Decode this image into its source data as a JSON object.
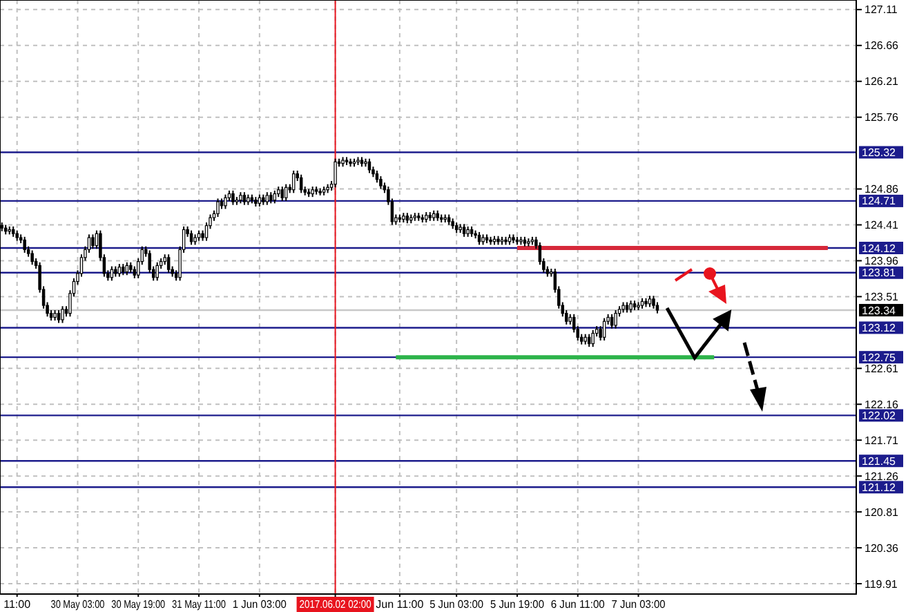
{
  "chart_data": {
    "type": "candlestick",
    "categories": [
      null,
      null,
      null,
      null,
      "11:00",
      null,
      null,
      null,
      null,
      null,
      null,
      null,
      null,
      null,
      null,
      null,
      null,
      null,
      null,
      null,
      "30 May 03:00",
      null,
      null,
      null,
      null,
      null,
      null,
      null,
      null,
      null,
      null,
      null,
      null,
      null,
      null,
      null,
      "30 May 19:00",
      null,
      null,
      null,
      null,
      null,
      null,
      null,
      null,
      null,
      null,
      null,
      null,
      null,
      null,
      null,
      "31 May 11:00",
      null,
      null,
      null,
      null,
      null,
      null,
      null,
      null,
      null,
      null,
      null,
      null,
      null,
      null,
      null,
      "1 Jun 03:00",
      null,
      null,
      null,
      null,
      null,
      null,
      null,
      null,
      null,
      null,
      null,
      null,
      null,
      null,
      null,
      null,
      null,
      null,
      null,
      "2017.06.02 02:00",
      null,
      null,
      null,
      null,
      null,
      null,
      null,
      null,
      null,
      null,
      null,
      null,
      null,
      null,
      null,
      null,
      "Jun 11:00",
      null,
      null,
      null,
      null,
      null,
      null,
      null,
      null,
      null,
      null,
      null,
      null,
      null,
      null,
      "5 Jun 03:00",
      null,
      null,
      null,
      null,
      null,
      null,
      null,
      null,
      null,
      null,
      null,
      null,
      null,
      null,
      null,
      "5 Jun 19:00",
      null,
      null,
      null,
      null,
      null,
      null,
      null,
      null,
      null,
      null,
      null,
      null,
      null,
      null,
      null,
      "6 Jun 11:00",
      null,
      null,
      null,
      null,
      null,
      null,
      null,
      null,
      null,
      null,
      null,
      null,
      null,
      null,
      null,
      "7 Jun 03:00",
      null,
      null,
      null,
      null,
      null,
      null,
      null,
      null,
      null,
      null,
      null,
      null,
      null,
      null,
      null,
      null,
      null,
      null,
      null,
      null,
      null,
      null,
      null,
      null,
      null,
      null,
      null,
      null,
      null,
      null,
      null,
      null,
      null,
      null,
      null,
      null,
      null,
      null,
      null,
      null,
      null,
      null,
      null,
      null,
      null,
      null,
      null,
      null,
      null,
      null,
      null,
      null,
      null,
      null,
      null,
      null,
      null
    ],
    "ohlc": [
      [
        124.4,
        124.44,
        124.33,
        124.37
      ],
      [
        124.37,
        124.41,
        124.29,
        124.33
      ],
      [
        124.33,
        124.39,
        124.29,
        124.35
      ],
      [
        124.35,
        124.39,
        124.26,
        124.3
      ],
      [
        124.3,
        124.34,
        124.21,
        124.25
      ],
      [
        124.25,
        124.29,
        124.18,
        124.22
      ],
      [
        124.22,
        124.26,
        124.06,
        124.1
      ],
      [
        124.1,
        124.14,
        124.01,
        124.05
      ],
      [
        124.05,
        124.09,
        123.91,
        123.95
      ],
      [
        123.95,
        123.99,
        123.86,
        123.9
      ],
      [
        123.9,
        123.94,
        123.56,
        123.6
      ],
      [
        123.6,
        123.64,
        123.36,
        123.4
      ],
      [
        123.4,
        123.44,
        123.26,
        123.3
      ],
      [
        123.3,
        123.34,
        123.21,
        123.25
      ],
      [
        123.25,
        123.34,
        123.21,
        123.3
      ],
      [
        123.3,
        123.34,
        123.18,
        123.22
      ],
      [
        123.22,
        123.39,
        123.18,
        123.35
      ],
      [
        123.35,
        123.39,
        123.26,
        123.3
      ],
      [
        123.3,
        123.59,
        123.26,
        123.55
      ],
      [
        123.55,
        123.74,
        123.51,
        123.7
      ],
      [
        123.7,
        123.84,
        123.66,
        123.8
      ],
      [
        123.8,
        124.04,
        123.76,
        124.0
      ],
      [
        124.0,
        124.14,
        123.96,
        124.1
      ],
      [
        124.1,
        124.29,
        124.06,
        124.25
      ],
      [
        124.25,
        124.29,
        124.11,
        124.15
      ],
      [
        124.15,
        124.34,
        124.11,
        124.3
      ],
      [
        124.3,
        124.34,
        123.96,
        124.0
      ],
      [
        124.0,
        124.04,
        123.76,
        123.8
      ],
      [
        123.8,
        123.84,
        123.71,
        123.75
      ],
      [
        123.75,
        123.89,
        123.71,
        123.85
      ],
      [
        123.85,
        123.89,
        123.76,
        123.8
      ],
      [
        123.8,
        123.92,
        123.76,
        123.88
      ],
      [
        123.88,
        123.92,
        123.78,
        123.82
      ],
      [
        123.82,
        123.94,
        123.78,
        123.9
      ],
      [
        123.9,
        123.94,
        123.81,
        123.85
      ],
      [
        123.85,
        123.89,
        123.74,
        123.78
      ],
      [
        123.78,
        123.99,
        123.74,
        123.95
      ],
      [
        123.95,
        124.14,
        123.91,
        124.1
      ],
      [
        124.1,
        124.14,
        124.01,
        124.05
      ],
      [
        124.05,
        124.09,
        123.81,
        123.85
      ],
      [
        123.85,
        123.89,
        123.71,
        123.75
      ],
      [
        123.75,
        123.94,
        123.71,
        123.9
      ],
      [
        123.9,
        123.99,
        123.86,
        123.95
      ],
      [
        123.95,
        124.04,
        123.91,
        124.0
      ],
      [
        124.0,
        124.04,
        123.81,
        123.85
      ],
      [
        123.85,
        123.89,
        123.76,
        123.8
      ],
      [
        123.8,
        123.84,
        123.71,
        123.75
      ],
      [
        123.75,
        124.14,
        123.71,
        124.1
      ],
      [
        124.1,
        124.39,
        124.06,
        124.35
      ],
      [
        124.35,
        124.39,
        124.26,
        124.3
      ],
      [
        124.3,
        124.34,
        124.16,
        124.2
      ],
      [
        124.2,
        124.29,
        124.16,
        124.25
      ],
      [
        124.25,
        124.34,
        124.21,
        124.3
      ],
      [
        124.3,
        124.34,
        124.21,
        124.25
      ],
      [
        124.25,
        124.44,
        124.21,
        124.4
      ],
      [
        124.4,
        124.54,
        124.36,
        124.5
      ],
      [
        124.5,
        124.59,
        124.46,
        124.55
      ],
      [
        124.55,
        124.74,
        124.51,
        124.7
      ],
      [
        124.7,
        124.74,
        124.61,
        124.65
      ],
      [
        124.65,
        124.79,
        124.61,
        124.75
      ],
      [
        124.75,
        124.84,
        124.71,
        124.8
      ],
      [
        124.8,
        124.84,
        124.66,
        124.7
      ],
      [
        124.7,
        124.76,
        124.66,
        124.72
      ],
      [
        124.72,
        124.82,
        124.68,
        124.78
      ],
      [
        124.78,
        124.82,
        124.66,
        124.7
      ],
      [
        124.7,
        124.79,
        124.66,
        124.75
      ],
      [
        124.75,
        124.79,
        124.68,
        124.72
      ],
      [
        124.72,
        124.76,
        124.64,
        124.68
      ],
      [
        124.68,
        124.79,
        124.64,
        124.75
      ],
      [
        124.75,
        124.79,
        124.66,
        124.7
      ],
      [
        124.7,
        124.82,
        124.66,
        124.78
      ],
      [
        124.78,
        124.82,
        124.68,
        124.72
      ],
      [
        124.72,
        124.84,
        124.68,
        124.8
      ],
      [
        124.8,
        124.89,
        124.76,
        124.85
      ],
      [
        124.85,
        124.89,
        124.71,
        124.75
      ],
      [
        124.75,
        124.92,
        124.71,
        124.88
      ],
      [
        124.88,
        124.92,
        124.81,
        124.85
      ],
      [
        124.85,
        125.09,
        124.81,
        125.05
      ],
      [
        125.05,
        125.09,
        124.96,
        125.0
      ],
      [
        125.0,
        125.04,
        124.81,
        124.85
      ],
      [
        124.85,
        124.89,
        124.78,
        124.82
      ],
      [
        124.82,
        124.86,
        124.76,
        124.8
      ],
      [
        124.8,
        124.89,
        124.76,
        124.85
      ],
      [
        124.85,
        124.89,
        124.79,
        124.83
      ],
      [
        124.83,
        124.87,
        124.78,
        124.82
      ],
      [
        124.82,
        124.89,
        124.78,
        124.85
      ],
      [
        124.85,
        124.92,
        124.81,
        124.88
      ],
      [
        124.88,
        124.96,
        124.84,
        124.92
      ],
      [
        124.92,
        125.24,
        124.88,
        125.2
      ],
      [
        125.2,
        125.24,
        125.14,
        125.18
      ],
      [
        125.18,
        125.26,
        125.14,
        125.22
      ],
      [
        125.22,
        125.26,
        125.16,
        125.2
      ],
      [
        125.2,
        125.24,
        125.14,
        125.18
      ],
      [
        125.18,
        125.24,
        125.14,
        125.2
      ],
      [
        125.2,
        125.26,
        125.16,
        125.22
      ],
      [
        125.22,
        125.26,
        125.14,
        125.18
      ],
      [
        125.18,
        125.24,
        125.14,
        125.2
      ],
      [
        125.2,
        125.24,
        125.06,
        125.1
      ],
      [
        125.1,
        125.14,
        125.01,
        125.05
      ],
      [
        125.05,
        125.09,
        124.94,
        124.98
      ],
      [
        124.98,
        125.02,
        124.86,
        124.9
      ],
      [
        124.9,
        124.94,
        124.81,
        124.85
      ],
      [
        124.85,
        124.89,
        124.66,
        124.7
      ],
      [
        124.7,
        124.74,
        124.41,
        124.45
      ],
      [
        124.45,
        124.54,
        124.41,
        124.5
      ],
      [
        124.5,
        124.54,
        124.44,
        124.48
      ],
      [
        124.48,
        124.56,
        124.44,
        124.52
      ],
      [
        124.52,
        124.56,
        124.43,
        124.47
      ],
      [
        124.47,
        124.54,
        124.43,
        124.5
      ],
      [
        124.5,
        124.56,
        124.46,
        124.52
      ],
      [
        124.52,
        124.56,
        124.46,
        124.5
      ],
      [
        124.5,
        124.54,
        124.44,
        124.48
      ],
      [
        124.48,
        124.57,
        124.44,
        124.53
      ],
      [
        124.53,
        124.57,
        124.46,
        124.5
      ],
      [
        124.5,
        124.59,
        124.46,
        124.55
      ],
      [
        124.55,
        124.59,
        124.46,
        124.5
      ],
      [
        124.5,
        124.54,
        124.44,
        124.48
      ],
      [
        124.48,
        124.54,
        124.44,
        124.5
      ],
      [
        124.5,
        124.54,
        124.41,
        124.45
      ],
      [
        124.45,
        124.49,
        124.36,
        124.4
      ],
      [
        124.4,
        124.44,
        124.31,
        124.35
      ],
      [
        124.35,
        124.42,
        124.31,
        124.38
      ],
      [
        124.38,
        124.42,
        124.26,
        124.3
      ],
      [
        124.3,
        124.39,
        124.26,
        124.35
      ],
      [
        124.35,
        124.39,
        124.26,
        124.3
      ],
      [
        124.3,
        124.34,
        124.24,
        124.28
      ],
      [
        124.28,
        124.32,
        124.16,
        124.2
      ],
      [
        124.2,
        124.29,
        124.16,
        124.25
      ],
      [
        124.25,
        124.29,
        124.18,
        124.22
      ],
      [
        124.22,
        124.26,
        124.16,
        124.2
      ],
      [
        124.2,
        124.27,
        124.16,
        124.23
      ],
      [
        124.23,
        124.27,
        124.16,
        124.2
      ],
      [
        124.2,
        124.26,
        124.16,
        124.22
      ],
      [
        124.22,
        124.26,
        124.16,
        124.2
      ],
      [
        124.2,
        124.29,
        124.16,
        124.25
      ],
      [
        124.25,
        124.29,
        124.18,
        124.22
      ],
      [
        124.22,
        124.26,
        124.16,
        124.2
      ],
      [
        124.2,
        124.26,
        124.16,
        124.22
      ],
      [
        124.22,
        124.26,
        124.14,
        124.18
      ],
      [
        124.18,
        124.24,
        124.14,
        124.2
      ],
      [
        124.2,
        124.26,
        124.16,
        124.22
      ],
      [
        124.22,
        124.26,
        124.11,
        124.15
      ],
      [
        124.15,
        124.19,
        123.91,
        123.95
      ],
      [
        123.95,
        123.99,
        123.81,
        123.85
      ],
      [
        123.85,
        123.89,
        123.76,
        123.8
      ],
      [
        123.8,
        123.86,
        123.76,
        123.82
      ],
      [
        123.82,
        123.86,
        123.56,
        123.6
      ],
      [
        123.6,
        123.64,
        123.36,
        123.4
      ],
      [
        123.4,
        123.44,
        123.26,
        123.3
      ],
      [
        123.3,
        123.34,
        123.16,
        123.2
      ],
      [
        123.2,
        123.29,
        123.16,
        123.25
      ],
      [
        123.25,
        123.29,
        123.06,
        123.1
      ],
      [
        123.1,
        123.14,
        122.96,
        123.0
      ],
      [
        123.0,
        123.04,
        122.91,
        122.95
      ],
      [
        122.95,
        123.04,
        122.91,
        123.0
      ],
      [
        123.0,
        123.04,
        122.88,
        122.92
      ],
      [
        122.92,
        123.09,
        122.88,
        123.05
      ],
      [
        123.05,
        123.14,
        123.01,
        123.1
      ],
      [
        123.1,
        123.14,
        122.96,
        123.0
      ],
      [
        123.0,
        123.24,
        122.96,
        123.2
      ],
      [
        123.2,
        123.29,
        123.16,
        123.25
      ],
      [
        123.25,
        123.29,
        123.11,
        123.15
      ],
      [
        123.15,
        123.34,
        123.11,
        123.3
      ],
      [
        123.3,
        123.39,
        123.26,
        123.35
      ],
      [
        123.35,
        123.44,
        123.31,
        123.4
      ],
      [
        123.4,
        123.44,
        123.31,
        123.35
      ],
      [
        123.35,
        123.46,
        123.31,
        123.42
      ],
      [
        123.42,
        123.46,
        123.34,
        123.38
      ],
      [
        123.38,
        123.44,
        123.34,
        123.4
      ],
      [
        123.4,
        123.49,
        123.36,
        123.45
      ],
      [
        123.45,
        123.49,
        123.38,
        123.42
      ],
      [
        123.42,
        123.52,
        123.38,
        123.48
      ],
      [
        123.48,
        123.52,
        123.36,
        123.4
      ],
      [
        123.4,
        123.44,
        123.3,
        123.34
      ],
      null,
      null,
      null,
      null,
      null,
      null,
      null,
      null,
      null,
      null,
      null,
      null,
      null,
      null,
      null,
      null,
      null,
      null,
      null,
      null,
      null,
      null,
      null,
      null,
      null,
      null,
      null,
      null,
      null,
      null,
      null,
      null,
      null,
      null,
      null,
      null,
      null,
      null,
      null,
      null,
      null,
      null,
      null,
      null,
      null,
      null,
      null,
      null,
      null,
      null,
      null,
      null
    ],
    "series": [
      {
        "type": "line",
        "color": "#d6283a",
        "values": [
          null,
          null,
          null,
          null,
          null,
          null,
          null,
          null,
          null,
          null,
          null,
          null,
          null,
          null,
          null,
          null,
          null,
          null,
          null,
          null,
          null,
          null,
          null,
          null,
          null,
          null,
          null,
          null,
          null,
          null,
          null,
          null,
          null,
          null,
          null,
          null,
          null,
          null,
          null,
          null,
          null,
          null,
          null,
          null,
          null,
          null,
          null,
          null,
          null,
          null,
          null,
          null,
          null,
          null,
          null,
          null,
          null,
          null,
          null,
          null,
          null,
          null,
          null,
          null,
          null,
          null,
          null,
          null,
          null,
          null,
          null,
          null,
          null,
          null,
          null,
          null,
          null,
          null,
          null,
          null,
          null,
          null,
          null,
          null,
          null,
          null,
          null,
          null,
          null,
          null,
          null,
          null,
          null,
          null,
          null,
          null,
          null,
          null,
          null,
          null,
          null,
          null,
          null,
          null,
          null,
          null,
          null,
          null,
          null,
          null,
          null,
          null,
          null,
          null,
          null,
          null,
          null,
          null,
          null,
          null,
          null,
          null,
          null,
          null,
          null,
          null,
          null,
          null,
          null,
          null,
          null,
          null,
          null,
          null,
          null,
          null,
          124.12,
          124.12,
          124.12,
          124.12,
          124.12,
          124.12,
          124.12,
          124.12,
          124.12,
          124.12,
          124.12,
          124.12,
          124.12,
          124.12,
          124.12,
          124.12,
          124.12,
          124.12,
          124.12,
          124.12,
          124.12,
          124.12,
          124.12,
          124.12,
          124.12,
          124.12,
          124.12,
          124.12,
          124.12,
          124.12,
          124.12,
          124.12,
          124.12,
          124.12,
          124.12,
          124.12,
          124.12,
          124.12,
          124.12,
          124.12,
          124.12,
          124.12,
          124.12,
          124.12,
          124.12,
          124.12,
          124.12,
          124.12,
          124.12,
          124.12,
          124.12,
          124.12,
          124.12,
          124.12,
          124.12,
          124.12,
          124.12,
          124.12,
          124.12,
          124.12,
          124.12,
          124.12,
          124.12,
          124.12,
          124.12,
          124.12,
          124.12,
          124.12,
          124.12,
          124.12,
          124.12,
          124.12,
          124.12,
          124.12,
          124.12,
          124.12,
          124.12,
          124.12,
          124.12,
          124.12,
          124.12,
          124.12,
          124.12,
          null,
          null,
          null,
          null,
          null,
          null,
          null
        ]
      },
      {
        "type": "line",
        "color": "#2db34a",
        "values": [
          null,
          null,
          null,
          null,
          null,
          null,
          null,
          null,
          null,
          null,
          null,
          null,
          null,
          null,
          null,
          null,
          null,
          null,
          null,
          null,
          null,
          null,
          null,
          null,
          null,
          null,
          null,
          null,
          null,
          null,
          null,
          null,
          null,
          null,
          null,
          null,
          null,
          null,
          null,
          null,
          null,
          null,
          null,
          null,
          null,
          null,
          null,
          null,
          null,
          null,
          null,
          null,
          null,
          null,
          null,
          null,
          null,
          null,
          null,
          null,
          null,
          null,
          null,
          null,
          null,
          null,
          null,
          null,
          null,
          null,
          null,
          null,
          null,
          null,
          null,
          null,
          null,
          null,
          null,
          null,
          null,
          null,
          null,
          null,
          null,
          null,
          null,
          null,
          null,
          null,
          null,
          null,
          null,
          null,
          null,
          null,
          null,
          null,
          null,
          null,
          null,
          null,
          null,
          null,
          122.75,
          122.75,
          122.75,
          122.75,
          122.75,
          122.75,
          122.75,
          122.75,
          122.75,
          122.75,
          122.75,
          122.75,
          122.75,
          122.75,
          122.75,
          122.75,
          122.75,
          122.75,
          122.75,
          122.75,
          122.75,
          122.75,
          122.75,
          122.75,
          122.75,
          122.75,
          122.75,
          122.75,
          122.75,
          122.75,
          122.75,
          122.75,
          122.75,
          122.75,
          122.75,
          122.75,
          122.75,
          122.75,
          122.75,
          122.75,
          122.75,
          122.75,
          122.75,
          122.75,
          122.75,
          122.75,
          122.75,
          122.75,
          122.75,
          122.75,
          122.75,
          122.75,
          122.75,
          122.75,
          122.75,
          122.75,
          122.75,
          122.75,
          122.75,
          122.75,
          122.75,
          122.75,
          122.75,
          122.75,
          122.75,
          122.75,
          122.75,
          122.75,
          122.75,
          122.75,
          122.75,
          122.75,
          122.75,
          122.75,
          122.75,
          122.75,
          122.75,
          122.75,
          122.75,
          122.75,
          122.75,
          122.75,
          122.75,
          122.75,
          122.75,
          null,
          null,
          null,
          null,
          null,
          null,
          null,
          null,
          null,
          null,
          null,
          null,
          null,
          null,
          null,
          null,
          null,
          null,
          null,
          null,
          null,
          null,
          null,
          null,
          null,
          null,
          null,
          null,
          null,
          null,
          null,
          null,
          null,
          null,
          null,
          null,
          null
        ]
      }
    ],
    "marker": "none",
    "line_style": "solid",
    "grid": true,
    "ylim": [
      119.78,
      127.23
    ],
    "yticks": [
      127.11,
      126.66,
      126.21,
      125.76,
      124.86,
      124.41,
      123.96,
      123.51,
      122.61,
      122.16,
      121.71,
      121.26,
      120.81,
      120.36,
      119.91
    ],
    "ref_lines": [
      {
        "axis": "y",
        "value": 125.32,
        "label": "125.32",
        "color": "#1c1c8c"
      },
      {
        "axis": "y",
        "value": 124.71,
        "label": "124.71",
        "color": "#1c1c8c"
      },
      {
        "axis": "y",
        "value": 124.12,
        "label": "124.12",
        "color": "#1c1c8c"
      },
      {
        "axis": "y",
        "value": 123.81,
        "label": "123.81",
        "color": "#1c1c8c"
      },
      {
        "axis": "y",
        "value": 123.34,
        "label": "123.34",
        "color": "#c8c8c8"
      },
      {
        "axis": "y",
        "value": 123.12,
        "label": "123.12",
        "color": "#1c1c8c"
      },
      {
        "axis": "y",
        "value": 122.75,
        "label": "122.75",
        "color": "#1c1c8c"
      },
      {
        "axis": "y",
        "value": 122.02,
        "label": "122.02",
        "color": "#1c1c8c"
      },
      {
        "axis": "y",
        "value": 121.45,
        "label": "121.45",
        "color": "#1c1c8c"
      },
      {
        "axis": "y",
        "value": 121.12,
        "label": "121.12",
        "color": "#1c1c8c"
      },
      {
        "axis": "x",
        "value": "2017.06.02 02:00",
        "color": "#e8141e"
      }
    ]
  }
}
